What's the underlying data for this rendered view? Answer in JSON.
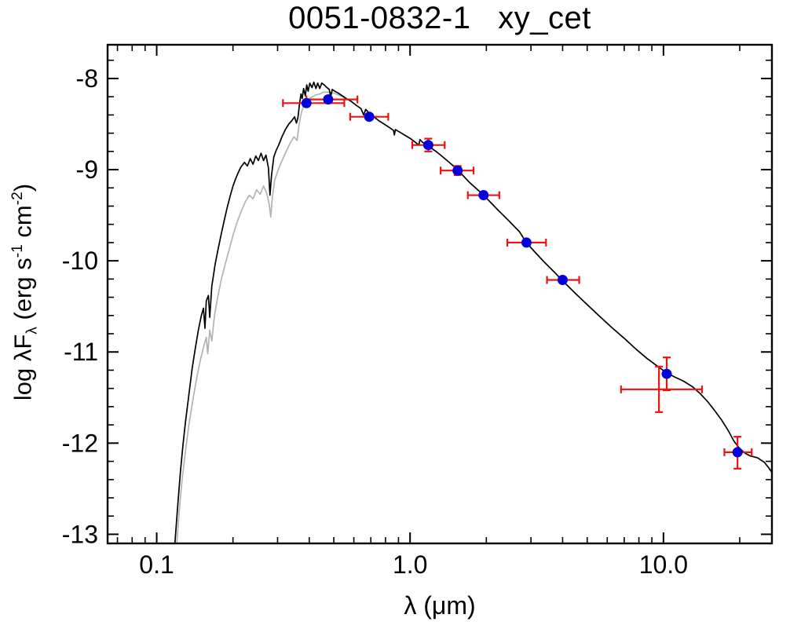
{
  "chart_data": {
    "type": "line+scatter",
    "title": "0051-0832-1   xy_cet",
    "xlabel": "λ (μm)",
    "ylabel_plain": "log λF_λ (erg s^-1 cm^-2)",
    "ylabel_parts": [
      {
        "text": "log ",
        "pos": "normal"
      },
      {
        "text": "λF",
        "pos": "normal"
      },
      {
        "text": "λ",
        "pos": "sub"
      },
      {
        "text": " (erg s",
        "pos": "normal"
      },
      {
        "text": "-1",
        "pos": "sup"
      },
      {
        "text": " cm",
        "pos": "normal"
      },
      {
        "text": "-2",
        "pos": "sup"
      },
      {
        "text": ")",
        "pos": "normal"
      }
    ],
    "x_scale": "log",
    "y_scale": "linear",
    "xlim": [
      0.064,
      26.8
    ],
    "ylim": [
      -13.1,
      -7.63
    ],
    "grid": false,
    "legend": "none",
    "x_ticks": [
      {
        "value": 0.1,
        "label": "0.1"
      },
      {
        "value": 1.0,
        "label": "1.0"
      },
      {
        "value": 10.0,
        "label": "10.0"
      }
    ],
    "y_ticks": [
      {
        "value": -8,
        "label": "-8"
      },
      {
        "value": -9,
        "label": "-9"
      },
      {
        "value": -10,
        "label": "-10"
      },
      {
        "value": -11,
        "label": "-11"
      },
      {
        "value": -12,
        "label": "-12"
      },
      {
        "value": -13,
        "label": "-13"
      }
    ],
    "colors": {
      "frame": "#000000",
      "model": "#000000",
      "model_unreddened": "#b3b3b3",
      "error_bar": "#ee1111",
      "marker": "#0000dd"
    },
    "photometry": [
      {
        "x": 0.39,
        "y": -8.27,
        "xlo": 0.315,
        "xhi": 0.55,
        "ylo": -8.27,
        "yhi": -8.27,
        "marker": "circle"
      },
      {
        "x": 0.475,
        "y": -8.23,
        "xlo": 0.39,
        "xhi": 0.62,
        "ylo": -8.23,
        "yhi": -8.23,
        "marker": "circle"
      },
      {
        "x": 0.69,
        "y": -8.42,
        "xlo": 0.58,
        "xhi": 0.82,
        "ylo": -8.42,
        "yhi": -8.42,
        "marker": "circle"
      },
      {
        "x": 1.18,
        "y": -8.73,
        "xlo": 1.02,
        "xhi": 1.37,
        "ylo": -8.8,
        "yhi": -8.66,
        "marker": "circle"
      },
      {
        "x": 1.54,
        "y": -9.01,
        "xlo": 1.32,
        "xhi": 1.78,
        "ylo": -9.06,
        "yhi": -8.96,
        "marker": "circle"
      },
      {
        "x": 1.95,
        "y": -9.28,
        "xlo": 1.69,
        "xhi": 2.25,
        "ylo": -9.28,
        "yhi": -9.28,
        "marker": "circle"
      },
      {
        "x": 2.88,
        "y": -9.8,
        "xlo": 2.42,
        "xhi": 3.44,
        "ylo": -9.8,
        "yhi": -9.8,
        "marker": "circle"
      },
      {
        "x": 4.0,
        "y": -10.21,
        "xlo": 3.47,
        "xhi": 4.65,
        "ylo": -10.21,
        "yhi": -10.21,
        "marker": "circle"
      },
      {
        "x": 10.3,
        "y": -11.24,
        "xlo": 10.3,
        "xhi": 10.3,
        "ylo": -11.42,
        "yhi": -11.06,
        "marker": "circle"
      },
      {
        "x": 9.6,
        "y": -11.41,
        "xlo": 6.8,
        "xhi": 14.2,
        "ylo": -11.66,
        "yhi": -11.16,
        "marker": "none"
      },
      {
        "x": 19.6,
        "y": -12.1,
        "xlo": 17.4,
        "xhi": 22.3,
        "ylo": -12.28,
        "yhi": -11.93,
        "marker": "circle"
      }
    ],
    "series": [
      {
        "name": "unreddened-model-spectrum",
        "color": "#b3b3b3",
        "points": [
          [
            0.12,
            -13.1
          ],
          [
            0.123,
            -12.72
          ],
          [
            0.126,
            -12.4
          ],
          [
            0.13,
            -12.08
          ],
          [
            0.134,
            -11.8
          ],
          [
            0.139,
            -11.52
          ],
          [
            0.144,
            -11.28
          ],
          [
            0.149,
            -11.08
          ],
          [
            0.154,
            -10.92
          ],
          [
            0.157,
            -10.84
          ],
          [
            0.159,
            -11.02
          ],
          [
            0.162,
            -10.76
          ],
          [
            0.165,
            -10.88
          ],
          [
            0.169,
            -10.6
          ],
          [
            0.174,
            -10.4
          ],
          [
            0.18,
            -10.2
          ],
          [
            0.187,
            -10.02
          ],
          [
            0.194,
            -9.86
          ],
          [
            0.201,
            -9.7
          ],
          [
            0.208,
            -9.57
          ],
          [
            0.216,
            -9.45
          ],
          [
            0.224,
            -9.35
          ],
          [
            0.232,
            -9.28
          ],
          [
            0.24,
            -9.32
          ],
          [
            0.248,
            -9.22
          ],
          [
            0.256,
            -9.27
          ],
          [
            0.264,
            -9.18
          ],
          [
            0.272,
            -9.26
          ],
          [
            0.278,
            -9.38
          ],
          [
            0.282,
            -9.52
          ],
          [
            0.286,
            -9.3
          ],
          [
            0.292,
            -9.12
          ],
          [
            0.3,
            -9.02
          ],
          [
            0.31,
            -8.92
          ],
          [
            0.322,
            -8.82
          ],
          [
            0.335,
            -8.72
          ],
          [
            0.348,
            -8.64
          ],
          [
            0.358,
            -8.68
          ],
          [
            0.365,
            -8.5
          ],
          [
            0.372,
            -8.38
          ],
          [
            0.38,
            -8.3
          ],
          [
            0.39,
            -8.26
          ],
          [
            0.4,
            -8.22
          ],
          [
            0.412,
            -8.2
          ],
          [
            0.425,
            -8.18
          ],
          [
            0.44,
            -8.17
          ],
          [
            0.455,
            -8.15
          ],
          [
            0.47,
            -8.15
          ],
          [
            0.5,
            -8.16
          ],
          [
            0.53,
            -8.19
          ],
          [
            0.56,
            -8.22
          ]
        ]
      },
      {
        "name": "model-spectrum",
        "color": "#000000",
        "points": [
          [
            0.118,
            -13.1
          ],
          [
            0.121,
            -12.7
          ],
          [
            0.124,
            -12.32
          ],
          [
            0.127,
            -12.02
          ],
          [
            0.13,
            -11.76
          ],
          [
            0.134,
            -11.47
          ],
          [
            0.138,
            -11.18
          ],
          [
            0.142,
            -10.96
          ],
          [
            0.146,
            -10.76
          ],
          [
            0.15,
            -10.6
          ],
          [
            0.153,
            -10.52
          ],
          [
            0.155,
            -10.74
          ],
          [
            0.157,
            -10.44
          ],
          [
            0.16,
            -10.38
          ],
          [
            0.162,
            -10.62
          ],
          [
            0.165,
            -10.28
          ],
          [
            0.17,
            -10.04
          ],
          [
            0.175,
            -9.86
          ],
          [
            0.18,
            -9.7
          ],
          [
            0.185,
            -9.55
          ],
          [
            0.19,
            -9.41
          ],
          [
            0.195,
            -9.29
          ],
          [
            0.2,
            -9.18
          ],
          [
            0.205,
            -9.1
          ],
          [
            0.21,
            -9.03
          ],
          [
            0.215,
            -8.97
          ],
          [
            0.222,
            -8.92
          ],
          [
            0.228,
            -8.96
          ],
          [
            0.234,
            -8.88
          ],
          [
            0.24,
            -8.94
          ],
          [
            0.246,
            -8.85
          ],
          [
            0.252,
            -8.9
          ],
          [
            0.258,
            -8.82
          ],
          [
            0.264,
            -8.9
          ],
          [
            0.27,
            -8.84
          ],
          [
            0.276,
            -8.98
          ],
          [
            0.28,
            -9.28
          ],
          [
            0.284,
            -9.06
          ],
          [
            0.29,
            -8.86
          ],
          [
            0.296,
            -8.79
          ],
          [
            0.303,
            -8.73
          ],
          [
            0.312,
            -8.64
          ],
          [
            0.322,
            -8.56
          ],
          [
            0.332,
            -8.5
          ],
          [
            0.342,
            -8.46
          ],
          [
            0.35,
            -8.42
          ],
          [
            0.356,
            -8.49
          ],
          [
            0.361,
            -8.43
          ],
          [
            0.366,
            -8.28
          ],
          [
            0.371,
            -8.17
          ],
          [
            0.375,
            -8.22
          ],
          [
            0.38,
            -8.11
          ],
          [
            0.386,
            -8.19
          ],
          [
            0.391,
            -8.07
          ],
          [
            0.396,
            -8.14
          ],
          [
            0.402,
            -8.05
          ],
          [
            0.41,
            -8.1
          ],
          [
            0.417,
            -8.04
          ],
          [
            0.425,
            -8.11
          ],
          [
            0.432,
            -8.05
          ],
          [
            0.44,
            -8.11
          ],
          [
            0.448,
            -8.05
          ],
          [
            0.458,
            -8.07
          ],
          [
            0.47,
            -8.1
          ],
          [
            0.48,
            -8.12
          ],
          [
            0.486,
            -8.2
          ],
          [
            0.493,
            -8.12
          ],
          [
            0.505,
            -8.14
          ],
          [
            0.52,
            -8.16
          ],
          [
            0.54,
            -8.19
          ],
          [
            0.56,
            -8.22
          ],
          [
            0.585,
            -8.25
          ],
          [
            0.61,
            -8.29
          ],
          [
            0.64,
            -8.33
          ],
          [
            0.656,
            -8.4
          ],
          [
            0.668,
            -8.34
          ],
          [
            0.69,
            -8.38
          ],
          [
            0.72,
            -8.42
          ],
          [
            0.75,
            -8.46
          ],
          [
            0.79,
            -8.5
          ],
          [
            0.83,
            -8.54
          ],
          [
            0.86,
            -8.57
          ],
          [
            0.867,
            -8.62
          ],
          [
            0.875,
            -8.56
          ],
          [
            0.9,
            -8.58
          ],
          [
            0.95,
            -8.62
          ],
          [
            1.005,
            -8.66
          ],
          [
            1.083,
            -8.73
          ],
          [
            1.094,
            -8.67
          ],
          [
            1.12,
            -8.7
          ],
          [
            1.18,
            -8.74
          ],
          [
            1.28,
            -8.81
          ],
          [
            1.4,
            -8.9
          ],
          [
            1.54,
            -9.0
          ],
          [
            1.7,
            -9.13
          ],
          [
            1.95,
            -9.28
          ],
          [
            2.2,
            -9.43
          ],
          [
            2.45,
            -9.56
          ],
          [
            2.7,
            -9.68
          ],
          [
            2.88,
            -9.8
          ],
          [
            3.1,
            -9.9
          ],
          [
            3.4,
            -10.02
          ],
          [
            3.7,
            -10.12
          ],
          [
            4.0,
            -10.22
          ],
          [
            4.5,
            -10.36
          ],
          [
            5.0,
            -10.48
          ],
          [
            5.6,
            -10.61
          ],
          [
            6.3,
            -10.74
          ],
          [
            7.0,
            -10.85
          ],
          [
            7.8,
            -10.97
          ],
          [
            8.6,
            -11.07
          ],
          [
            9.4,
            -11.15
          ],
          [
            10.2,
            -11.22
          ],
          [
            11.0,
            -11.27
          ],
          [
            12.0,
            -11.32
          ],
          [
            13.0,
            -11.38
          ],
          [
            14.0,
            -11.46
          ],
          [
            15.0,
            -11.55
          ],
          [
            16.0,
            -11.65
          ],
          [
            17.0,
            -11.75
          ],
          [
            18.0,
            -11.86
          ],
          [
            19.0,
            -11.98
          ],
          [
            20.0,
            -12.06
          ],
          [
            21.0,
            -12.11
          ],
          [
            22.0,
            -12.14
          ],
          [
            23.5,
            -12.16
          ],
          [
            25.0,
            -12.21
          ],
          [
            26.0,
            -12.27
          ],
          [
            26.8,
            -12.32
          ]
        ]
      }
    ]
  }
}
